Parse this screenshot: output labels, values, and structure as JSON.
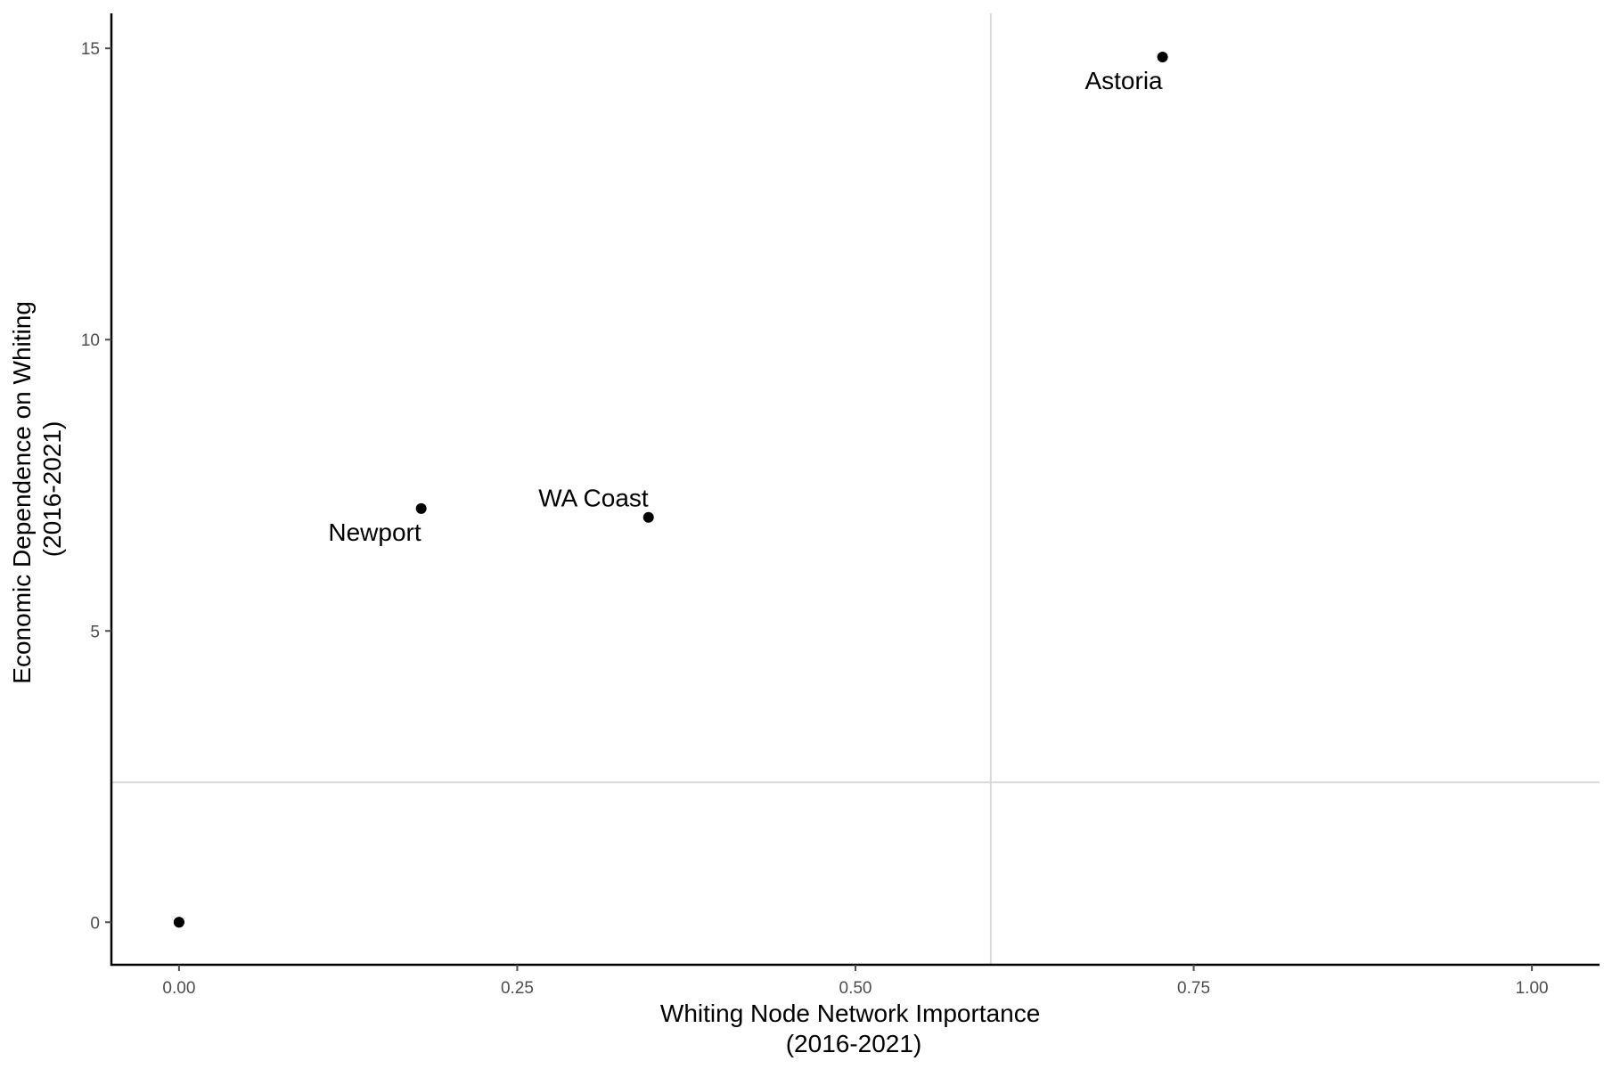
{
  "colors": {
    "background": "#ffffff",
    "axis": "#000000",
    "reference_line": "#d9d9d9",
    "point": "#000000",
    "tick_text": "#4d4d4d"
  },
  "chart_data": {
    "type": "scatter",
    "xlabel_lines": [
      "Whiting Node Network Importance",
      "(2016-2021)"
    ],
    "ylabel_lines": [
      "Economic Dependence on Whiting",
      "(2016-2021)"
    ],
    "xlim": [
      -0.05,
      1.05
    ],
    "ylim": [
      -0.73,
      15.6
    ],
    "x_ticks": [
      0.0,
      0.25,
      0.5,
      0.75,
      1.0
    ],
    "x_tick_labels": [
      "0.00",
      "0.25",
      "0.50",
      "0.75",
      "1.00"
    ],
    "y_ticks": [
      0,
      5,
      10,
      15
    ],
    "y_tick_labels": [
      "0",
      "5",
      "10",
      "15"
    ],
    "grid": false,
    "reference_lines": {
      "vertical_x": 0.6,
      "horizontal_y": 2.4
    },
    "points": [
      {
        "x": 0.0,
        "y": 0.0,
        "label": ""
      },
      {
        "x": 0.0,
        "y": 0.0,
        "label": ""
      },
      {
        "x": 0.179,
        "y": 7.1,
        "label": "Newport",
        "label_anchor": "end",
        "label_pos": "below-left"
      },
      {
        "x": 0.347,
        "y": 6.95,
        "label": "WA Coast",
        "label_anchor": "end",
        "label_pos": "above-left"
      },
      {
        "x": 0.727,
        "y": 14.85,
        "label": "Astoria",
        "label_anchor": "end",
        "label_pos": "below-left"
      }
    ]
  }
}
